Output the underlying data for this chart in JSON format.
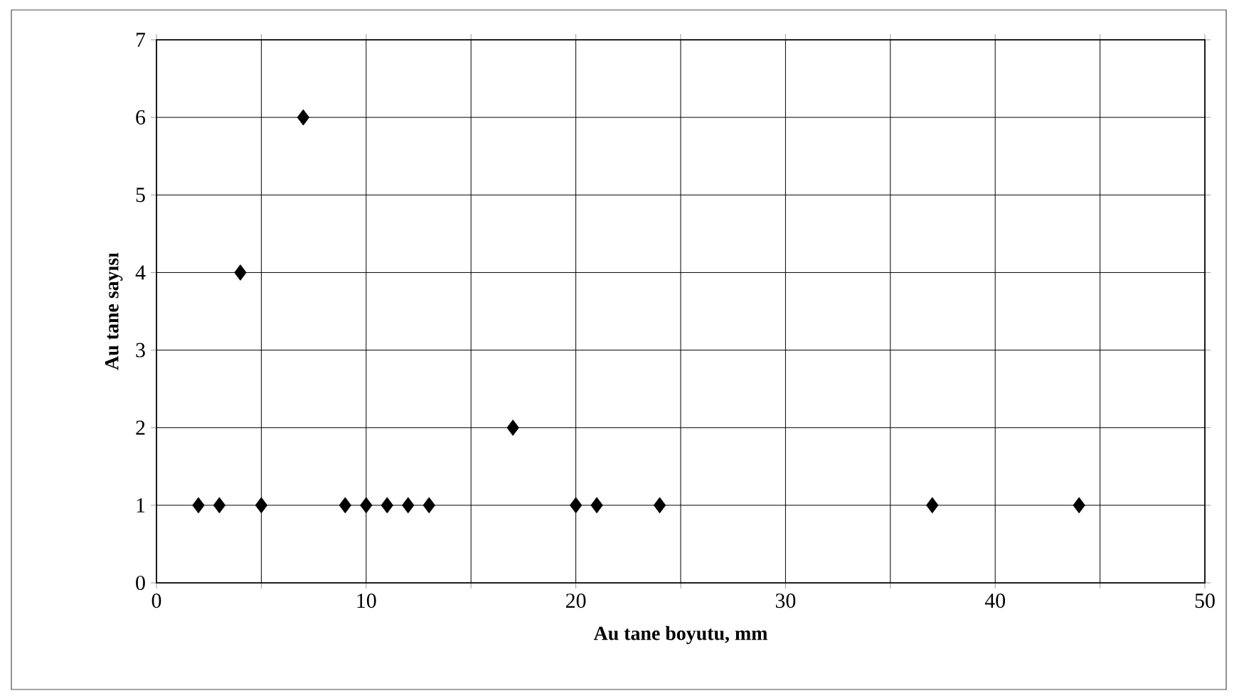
{
  "chart_data": {
    "type": "scatter",
    "xlabel": "Au tane boyutu, mm",
    "ylabel": "Au tane sayısı",
    "series": [
      {
        "color": "#000000",
        "x": [
          2,
          3,
          4,
          5,
          7,
          9,
          10,
          11,
          12,
          13,
          17,
          20,
          21,
          24,
          37,
          44
        ],
        "values": [
          1,
          1,
          4,
          1,
          6,
          1,
          1,
          1,
          1,
          1,
          2,
          1,
          1,
          1,
          1,
          1
        ]
      }
    ],
    "xlim": [
      0,
      50
    ],
    "ylim": [
      0,
      7
    ],
    "xticks": [
      0,
      {
        "value": 5,
        "label": null
      },
      10,
      {
        "value": 15,
        "label": null
      },
      20,
      {
        "value": 25,
        "label": null
      },
      30,
      {
        "value": 35,
        "label": null
      },
      40,
      {
        "value": 45,
        "label": null
      },
      50
    ],
    "yticks": [
      0,
      1,
      2,
      3,
      4,
      5,
      6,
      7
    ],
    "grid": true,
    "marker": "diamond"
  }
}
